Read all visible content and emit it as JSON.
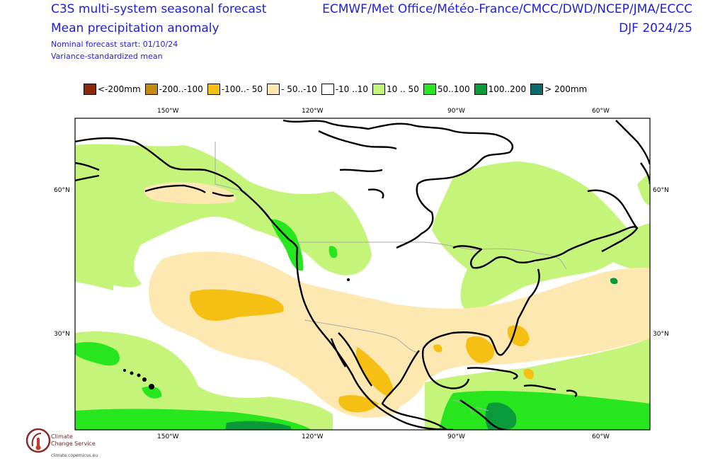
{
  "header": {
    "title_line1": "C3S multi-system seasonal forecast",
    "title_line2": "Mean precipitation anomaly",
    "forecast_start": "Nominal forecast start: 01/10/24",
    "method": "Variance-standardized mean",
    "systems": "ECMWF/Met Office/Météo-France/CMCC/DWD/NCEP/JMA/ECCC",
    "season": "DJF 2024/25"
  },
  "legend": [
    {
      "label": "<-200mm",
      "color": "#8b2a0a"
    },
    {
      "label": "-200..-100",
      "color": "#c58a10"
    },
    {
      "label": "-100..- 50",
      "color": "#f6bf14"
    },
    {
      "label": "- 50..-10",
      "color": "#fde8b2"
    },
    {
      "label": "-10 ..10",
      "color": "#ffffff"
    },
    {
      "label": "10 .. 50",
      "color": "#c4f47a"
    },
    {
      "label": "50..100",
      "color": "#27e61e"
    },
    {
      "label": "100..200",
      "color": "#0a9a3a"
    },
    {
      "label": "> 200mm",
      "color": "#0a6a6a"
    }
  ],
  "axes": {
    "lon_labels": [
      "150°W",
      "120°W",
      "90°W",
      "60°W"
    ],
    "lat_labels": [
      "60°N",
      "30°N"
    ]
  },
  "logo": {
    "line1": "Climate",
    "line2": "Change Service",
    "url": "climate.copernicus.eu"
  }
}
